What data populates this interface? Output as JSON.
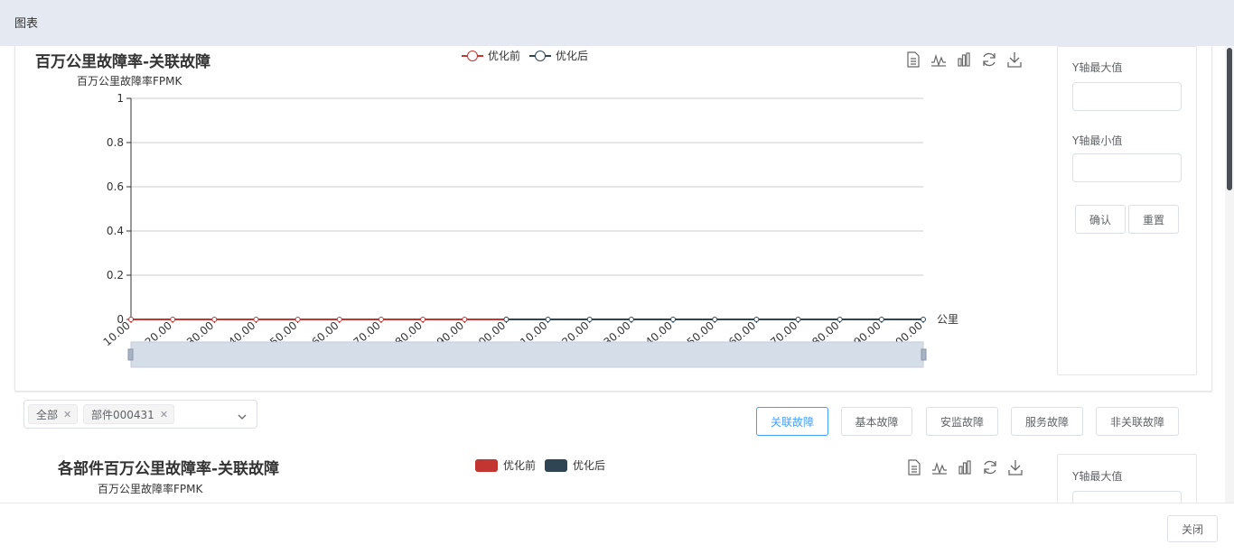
{
  "dialog": {
    "title": "图表",
    "close_label": "关闭"
  },
  "chart1": {
    "title": "百万公里故障率-关联故障",
    "y_unit": "百万公里故障率FPMK",
    "x_unit": "公里",
    "legend": [
      {
        "name": "优化前",
        "color": "#c23531"
      },
      {
        "name": "优化后",
        "color": "#2f4554"
      }
    ],
    "toolbox": [
      "data-view-icon",
      "line-chart-icon",
      "bar-chart-icon",
      "restore-icon",
      "download-icon"
    ]
  },
  "chart_data": [
    {
      "type": "line",
      "title": "百万公里故障率-关联故障",
      "ylabel": "百万公里故障率FPMK",
      "xlabel": "公里",
      "ylim": [
        0,
        1
      ],
      "y_ticks": [
        "0",
        "0.2",
        "0.4",
        "0.6",
        "0.8",
        "1"
      ],
      "x": [
        "10.00",
        "20.00",
        "30.00",
        "40.00",
        "50.00",
        "60.00",
        "70.00",
        "80.00",
        "90.00",
        "100.00",
        "110.00",
        "120.00",
        "130.00",
        "140.00",
        "150.00",
        "160.00",
        "170.00",
        "180.00",
        "190.00",
        "200.00"
      ],
      "series": [
        {
          "name": "优化前",
          "color": "#c23531",
          "values": [
            0,
            0,
            0,
            0,
            0,
            0,
            0,
            0,
            0,
            0,
            null,
            null,
            null,
            null,
            null,
            null,
            null,
            null,
            null,
            null
          ]
        },
        {
          "name": "优化后",
          "color": "#2f4554",
          "values": [
            null,
            null,
            null,
            null,
            null,
            null,
            null,
            null,
            null,
            0,
            0,
            0,
            0,
            0,
            0,
            0,
            0,
            0,
            0,
            0
          ]
        }
      ],
      "grid": true,
      "legend": "top-center",
      "datazoom": true
    }
  ],
  "side_panel": {
    "y_max_label": "Y轴最大值",
    "y_min_label": "Y轴最小值",
    "y_max_value": "",
    "y_min_value": "",
    "confirm_label": "确认",
    "reset_label": "重置"
  },
  "filter": {
    "tags": [
      "全部",
      "部件000431"
    ]
  },
  "fault_tabs": [
    {
      "label": "关联故障",
      "active": true
    },
    {
      "label": "基本故障",
      "active": false
    },
    {
      "label": "安监故障",
      "active": false
    },
    {
      "label": "服务故障",
      "active": false
    },
    {
      "label": "非关联故障",
      "active": false
    }
  ],
  "chart2": {
    "title": "各部件百万公里故障率-关联故障",
    "y_unit": "百万公里故障率FPMK",
    "legend": [
      {
        "name": "优化前",
        "color": "#c23531"
      },
      {
        "name": "优化后",
        "color": "#2f4554"
      }
    ],
    "y_max_label": "Y轴最大值"
  }
}
